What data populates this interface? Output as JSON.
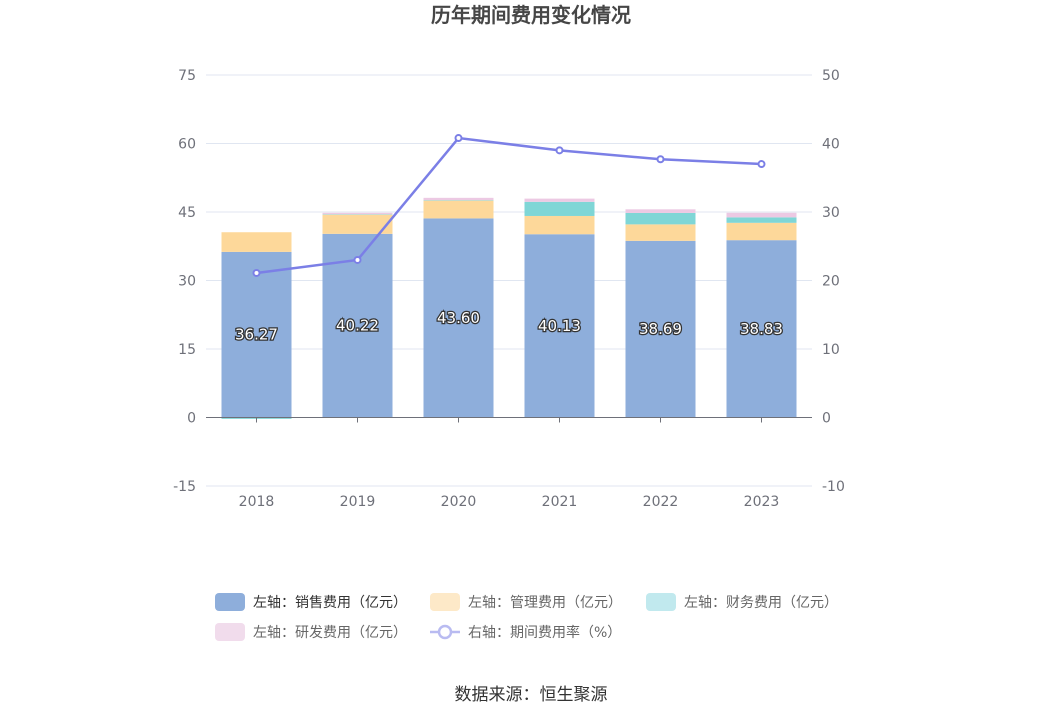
{
  "chart_data": {
    "type": "bar",
    "title": "历年期间费用变化情况",
    "categories": [
      "2018",
      "2019",
      "2020",
      "2021",
      "2022",
      "2023"
    ],
    "left_axis": {
      "ylim": [
        -15,
        75
      ],
      "ticks": [
        "75",
        "60",
        "45",
        "30",
        "15",
        "0",
        "-15"
      ]
    },
    "right_axis": {
      "ylim": [
        -10,
        50
      ],
      "ticks": [
        "50",
        "40",
        "30",
        "20",
        "10",
        "0",
        "-10"
      ]
    },
    "series": [
      {
        "name": "左轴：销售费用（亿元）",
        "type": "bar",
        "axis": "left",
        "color": "#8eaedb",
        "values": [
          36.27,
          40.22,
          43.6,
          40.13,
          38.69,
          38.83
        ],
        "labels": [
          "36.27",
          "40.22",
          "43.60",
          "40.13",
          "38.69",
          "38.83"
        ]
      },
      {
        "name": "左轴：管理费用（亿元）",
        "type": "bar",
        "axis": "left",
        "color": "#fdd89a",
        "values": [
          4.3,
          4.2,
          3.9,
          4.0,
          3.6,
          3.8
        ]
      },
      {
        "name": "左轴：财务费用（亿元）",
        "type": "bar",
        "axis": "left",
        "color": "#7fd6d6",
        "values": [
          -0.3,
          0.1,
          0.1,
          3.1,
          2.5,
          1.2
        ]
      },
      {
        "name": "左轴：研发费用（亿元）",
        "type": "bar",
        "axis": "left",
        "color": "#ecc9e3",
        "values": [
          0.0,
          0.3,
          0.5,
          0.7,
          0.8,
          1.0
        ]
      },
      {
        "name": "右轴：期间费用率（%）",
        "type": "line",
        "axis": "right",
        "color": "#7b7fe6",
        "values": [
          21.1,
          23.0,
          40.8,
          39.0,
          37.7,
          37.0
        ]
      }
    ],
    "legend_position": "bottom",
    "grid": true
  },
  "source_text": "数据来源：恒生聚源"
}
